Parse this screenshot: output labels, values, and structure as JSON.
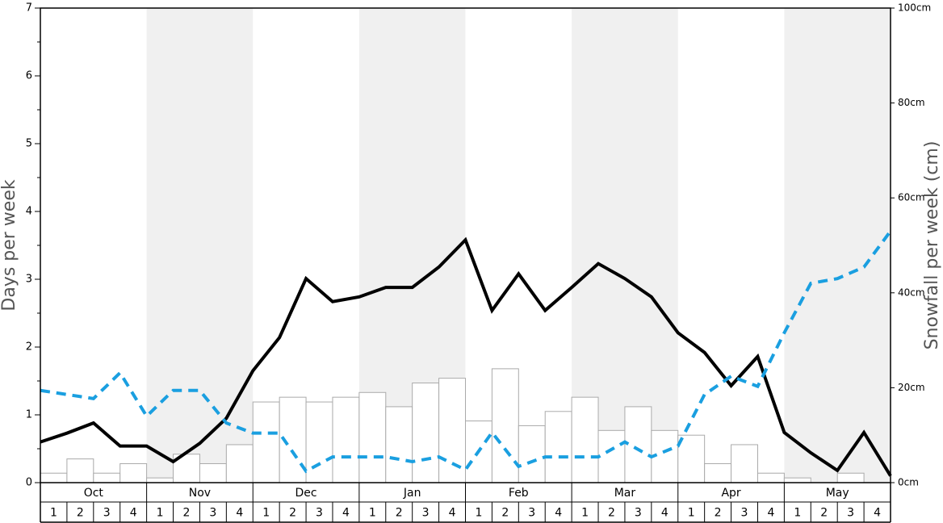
{
  "chart_data": {
    "type": "bar-line",
    "months": [
      "Oct",
      "Nov",
      "Dec",
      "Jan",
      "Feb",
      "Mar",
      "Apr",
      "May"
    ],
    "weeks": [
      "1",
      "2",
      "3",
      "4"
    ],
    "ylabel": "Days per week",
    "y2label": "Snowfall per week (cm)",
    "ylim": [
      0,
      7
    ],
    "yticks": [
      0,
      1,
      2,
      3,
      4,
      5,
      6,
      7
    ],
    "y2lim": [
      0,
      100
    ],
    "y2ticks": [
      {
        "value": 0,
        "label": "0cm"
      },
      {
        "value": 20,
        "label": "20cm"
      },
      {
        "value": 40,
        "label": "40cm"
      },
      {
        "value": 60,
        "label": "60cm"
      },
      {
        "value": 80,
        "label": "80cm"
      },
      {
        "value": 100,
        "label": "100cm"
      }
    ],
    "shade_color": "#f0f0f0",
    "series": [
      {
        "type": "bar",
        "axis": "y2",
        "color": "#ffffff",
        "edge": "#aaaaaa",
        "values": [
          2,
          5,
          2,
          4,
          1,
          6,
          4,
          8,
          17,
          18,
          17,
          18,
          19,
          16,
          21,
          22,
          13,
          24,
          12,
          15,
          18,
          11,
          16,
          11,
          10,
          4,
          8,
          2,
          1,
          0,
          2,
          0
        ]
      },
      {
        "type": "line",
        "color": "#000000",
        "dash": false,
        "values": [
          0.6,
          0.73,
          0.88,
          0.54,
          0.54,
          0.31,
          0.58,
          0.95,
          1.65,
          2.14,
          3.01,
          2.67,
          2.74,
          2.88,
          2.88,
          3.18,
          3.58,
          2.54,
          3.08,
          2.54,
          2.88,
          3.23,
          3.01,
          2.74,
          2.21,
          1.92,
          1.43,
          1.86,
          0.74,
          0.44,
          0.18,
          0.74,
          0.1
        ]
      },
      {
        "type": "line",
        "color": "#1a9fe0",
        "dash": true,
        "values": [
          1.36,
          1.3,
          1.24,
          1.62,
          0.98,
          1.36,
          1.36,
          0.88,
          0.73,
          0.73,
          0.17,
          0.38,
          0.38,
          0.38,
          0.31,
          0.38,
          0.19,
          0.74,
          0.24,
          0.38,
          0.38,
          0.38,
          0.6,
          0.38,
          0.54,
          1.3,
          1.57,
          1.42,
          2.21,
          2.94,
          3.01,
          3.18,
          3.71
        ]
      }
    ]
  }
}
